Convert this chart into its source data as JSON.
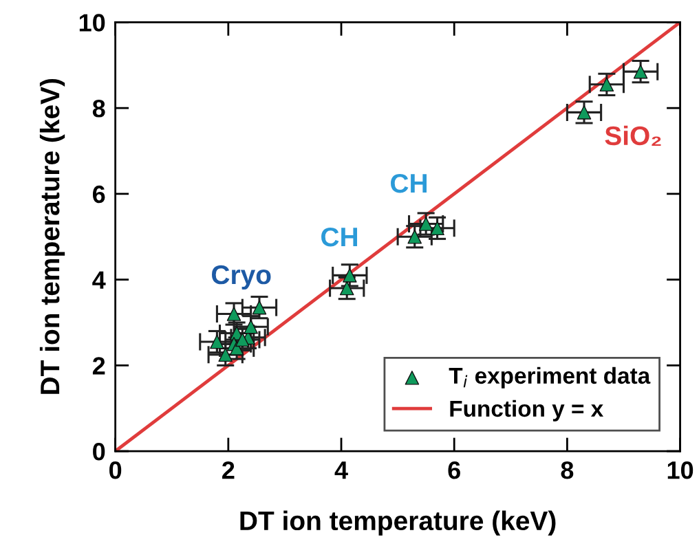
{
  "chart_data": {
    "type": "scatter",
    "xlabel": "DT ion temperature (keV)",
    "ylabel": "DT ion temperature (keV)",
    "xlim": [
      0,
      10
    ],
    "ylim": [
      0,
      10
    ],
    "xticks": [
      0,
      2,
      4,
      6,
      8,
      10
    ],
    "yticks": [
      0,
      2,
      4,
      6,
      8,
      10
    ],
    "grid": false,
    "legend": "bottom right",
    "series": [
      {
        "name": "T$_{i}$ experiment data",
        "marker": "triangle",
        "color": "#0f9a5c",
        "x": [
          2.1,
          2.55,
          1.8,
          1.95,
          2.15,
          2.1,
          2.15,
          2.35,
          2.4,
          2.25,
          4.15,
          4.1,
          5.3,
          5.5,
          5.7,
          8.3,
          8.7,
          9.3
        ],
        "values": [
          3.2,
          3.35,
          2.55,
          2.25,
          2.75,
          2.5,
          2.4,
          2.65,
          2.9,
          2.6,
          4.1,
          3.8,
          5.0,
          5.3,
          5.2,
          7.9,
          8.55,
          8.85
        ],
        "errors": [
          0.25,
          0.25,
          0.25,
          0.25,
          0.25,
          0.25,
          0.25,
          0.25,
          0.25,
          0.25,
          0.25,
          0.25,
          0.25,
          0.25,
          0.25,
          0.25,
          0.25,
          0.25
        ],
        "xerrors": [
          0.3,
          0.3,
          0.3,
          0.3,
          0.3,
          0.3,
          0.3,
          0.3,
          0.3,
          0.3,
          0.3,
          0.3,
          0.3,
          0.3,
          0.3,
          0.3,
          0.3,
          0.3
        ]
      },
      {
        "name": "Function y = x",
        "type": "line",
        "color": "#e03c3c",
        "x": [
          0,
          10
        ],
        "values": [
          0,
          10
        ]
      }
    ],
    "annotations": [
      "Cryo",
      "CH",
      "CH",
      "SiO₂"
    ]
  }
}
